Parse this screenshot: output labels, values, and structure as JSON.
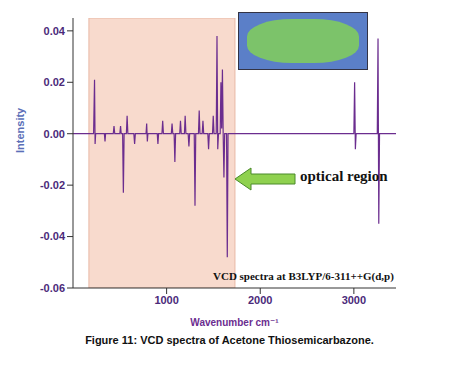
{
  "chart_data": {
    "type": "line",
    "title": "Figure 11: VCD spectra of Acetone Thiosemicarbazone.",
    "x_label": "Wavenumber cm⁻¹",
    "y_label": "Intensity",
    "color": "#6b2d8f",
    "xlim": [
      0,
      3450
    ],
    "ylim": [
      -0.06,
      0.045
    ],
    "xticks": [
      1000,
      2000,
      3000
    ],
    "yticks": [
      -0.06,
      -0.04,
      -0.02,
      {
        "value": 0,
        "label": "0.00"
      },
      0.02,
      0.04
    ],
    "annotations": [
      {
        "text": "optical region",
        "x_range": [
          170,
          1730
        ]
      },
      {
        "text": "VCD spectra at B3LYP/6-311++G(d,p)"
      }
    ],
    "x": [
      0,
      220,
      230,
      236,
      242,
      335,
      342,
      348,
      430,
      438,
      446,
      500,
      508,
      515,
      530,
      538,
      546,
      570,
      578,
      586,
      650,
      658,
      666,
      780,
      787,
      794,
      800,
      900,
      907,
      914,
      950,
      958,
      966,
      1050,
      1058,
      1066,
      1080,
      1088,
      1096,
      1140,
      1148,
      1156,
      1190,
      1198,
      1206,
      1230,
      1238,
      1246,
      1295,
      1303,
      1311,
      1340,
      1348,
      1356,
      1380,
      1388,
      1396,
      1440,
      1448,
      1456,
      1490,
      1498,
      1506,
      1530,
      1538,
      1546,
      1554,
      1572,
      1580,
      1588,
      1596,
      1604,
      1612,
      1620,
      1640,
      1648,
      1656,
      3000,
      3008,
      3016,
      3024,
      3250,
      3258,
      3266,
      3274,
      3450
    ],
    "values": [
      0,
      0,
      0.021,
      -0.004,
      0,
      0,
      -0.003,
      0,
      0,
      0.003,
      0,
      0,
      0.003,
      0,
      0,
      -0.023,
      0,
      0,
      0.007,
      0,
      0,
      -0.004,
      0,
      0,
      0.004,
      -0.003,
      0,
      0,
      -0.004,
      0,
      0,
      0.005,
      0,
      0,
      0.004,
      0,
      0,
      -0.011,
      0,
      0,
      0.005,
      0,
      0,
      0.007,
      0,
      0,
      -0.005,
      0,
      0,
      -0.028,
      0,
      0,
      0.009,
      0,
      0,
      0.005,
      0,
      0,
      -0.006,
      0,
      0,
      0.007,
      0,
      0,
      0.038,
      -0.006,
      0,
      0,
      0.02,
      0.002,
      0.025,
      0,
      -0.017,
      0,
      0,
      -0.048,
      0,
      0,
      0.02,
      -0.006,
      0,
      0,
      0.037,
      -0.035,
      0,
      0
    ]
  }
}
